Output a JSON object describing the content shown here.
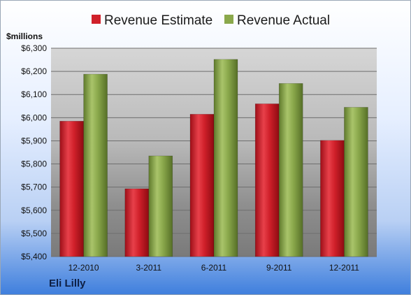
{
  "company": "Eli Lilly",
  "chart_data": {
    "type": "bar",
    "ylabel": "$millions",
    "categories": [
      "12-2010",
      "3-2011",
      "6-2011",
      "9-2011",
      "12-2011"
    ],
    "series": [
      {
        "name": "Revenue Estimate",
        "color": "#d0202a",
        "values": [
          5985,
          5693,
          6015,
          6060,
          5902
        ]
      },
      {
        "name": "Revenue Actual",
        "color": "#8aa84b",
        "values": [
          6188,
          5835,
          6252,
          6148,
          6045
        ]
      }
    ],
    "ylim": [
      5400,
      6300
    ],
    "yticks": [
      5400,
      5500,
      5600,
      5700,
      5800,
      5900,
      6000,
      6100,
      6200,
      6300
    ],
    "ytick_labels": [
      "$5,400",
      "$5,500",
      "$5,600",
      "$5,700",
      "$5,800",
      "$5,900",
      "$6,000",
      "$6,100",
      "$6,200",
      "$6,300"
    ],
    "grid": true,
    "legend_position": "top-center"
  }
}
